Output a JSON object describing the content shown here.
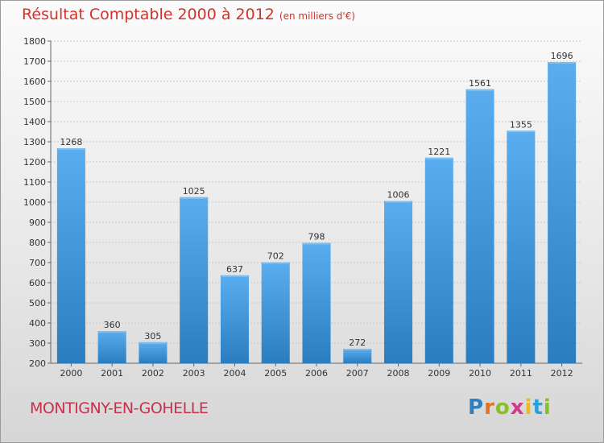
{
  "header": {
    "title": "Résultat Comptable 2000 à 2012",
    "subtitle": "(en milliers d'€)"
  },
  "footer": {
    "commune": "MONTIGNY-EN-GOHELLE",
    "logo_text": "Proxiti",
    "logo_letters": [
      {
        "ch": "P",
        "color": "#2f7fc1"
      },
      {
        "ch": "r",
        "color": "#e5731e"
      },
      {
        "ch": "o",
        "color": "#8bbf2a"
      },
      {
        "ch": "x",
        "color": "#d43a8a"
      },
      {
        "ch": "i",
        "color": "#f0b81c"
      },
      {
        "ch": "t",
        "color": "#2f9fd8"
      },
      {
        "ch": "i",
        "color": "#8bbf2a"
      }
    ]
  },
  "colors": {
    "title": "#d0332c",
    "commune": "#c8304b",
    "bar_top": "#5aaef0",
    "bar_bottom": "#2a7dbf"
  },
  "chart_data": {
    "type": "bar",
    "title": "Résultat Comptable 2000 à 2012",
    "subtitle": "(en milliers d'€)",
    "categories": [
      "2000",
      "2001",
      "2002",
      "2003",
      "2004",
      "2005",
      "2006",
      "2007",
      "2008",
      "2009",
      "2010",
      "2011",
      "2012"
    ],
    "values": [
      1268,
      360,
      305,
      1025,
      637,
      702,
      798,
      272,
      1006,
      1221,
      1561,
      1355,
      1696
    ],
    "ylim": [
      200,
      1800
    ],
    "yticks": [
      200,
      300,
      400,
      500,
      600,
      700,
      800,
      900,
      1000,
      1100,
      1200,
      1300,
      1400,
      1500,
      1600,
      1700,
      1800
    ],
    "grid": true,
    "data_labels": true,
    "legend": "none"
  }
}
